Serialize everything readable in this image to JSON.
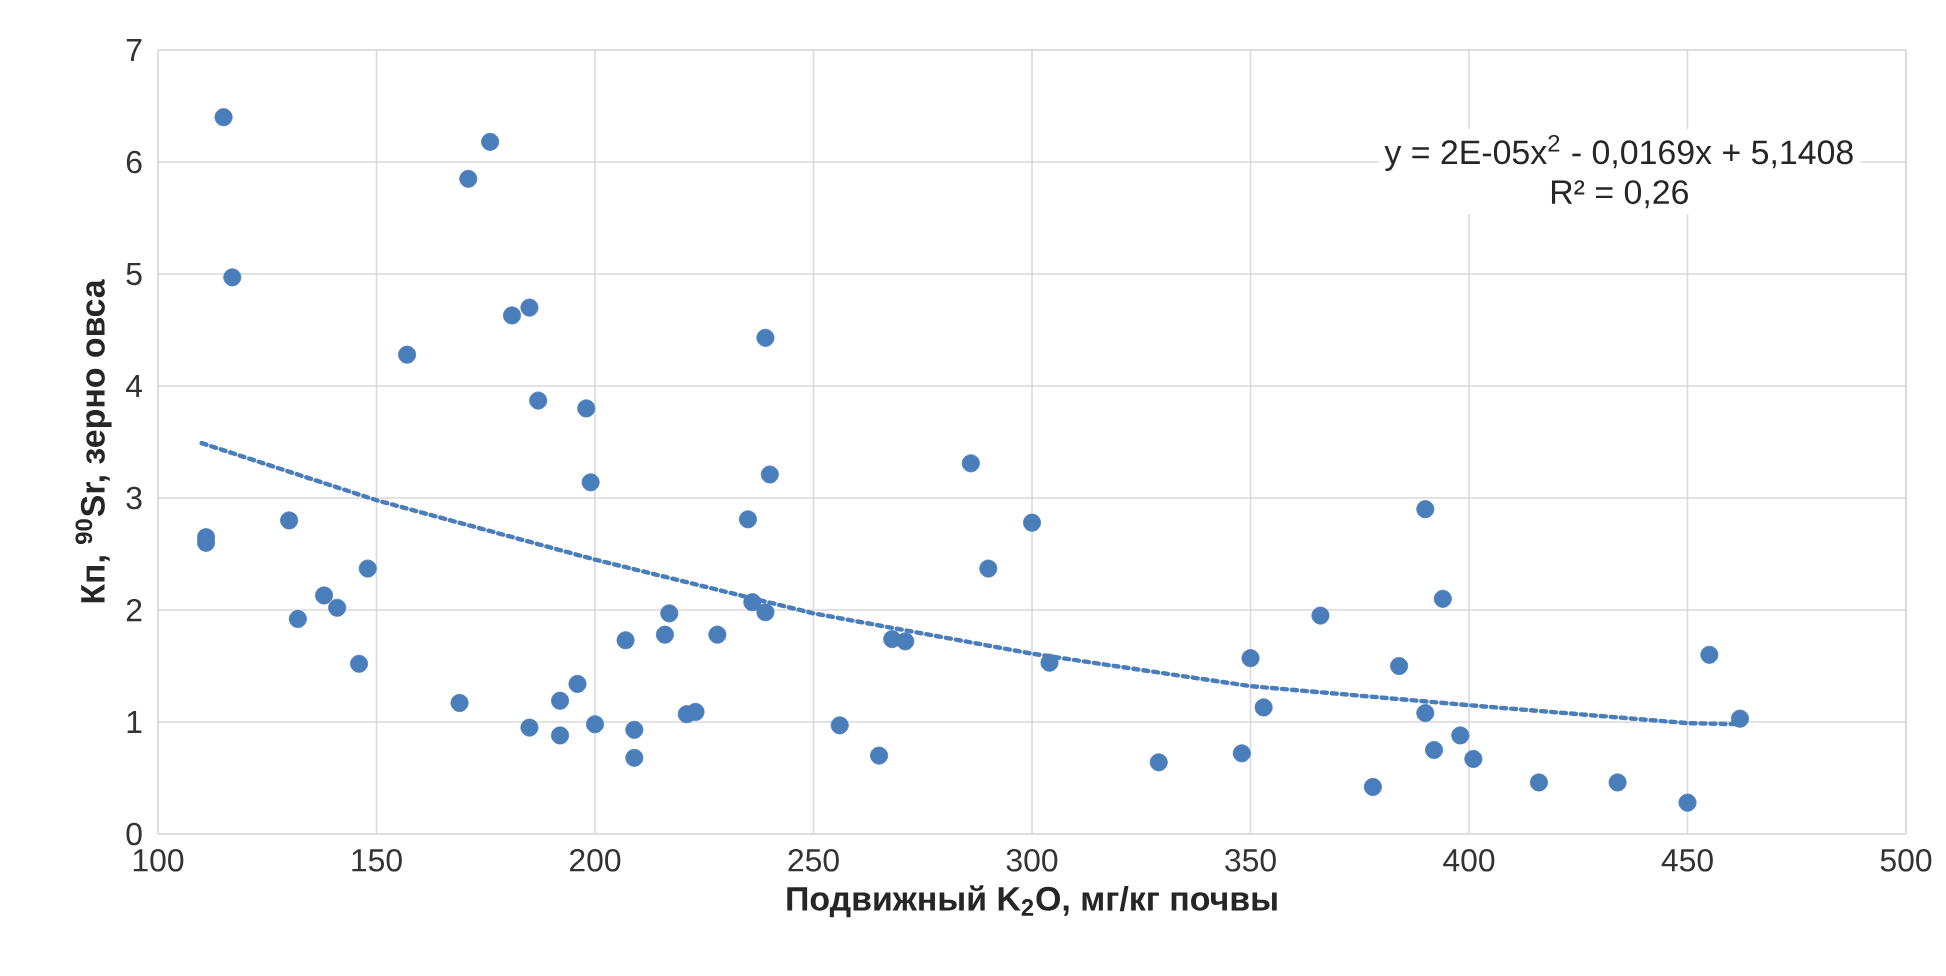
{
  "chart_data": {
    "type": "scatter",
    "xlabel": "Подвижный K$_{2}$O, мг/кг почвы",
    "ylabel": "Кп, $^{90}$Sr, зерно овса",
    "annotations": [
      "y = 2E-05x$^{2}$ - 0,0169x + 5,1408",
      "R² = 0,26"
    ],
    "xlim": [
      100,
      500
    ],
    "ylim": [
      0,
      7
    ],
    "xticks": [
      100,
      150,
      200,
      250,
      300,
      350,
      400,
      450,
      500
    ],
    "yticks": [
      0,
      1,
      2,
      3,
      4,
      5,
      6,
      7
    ],
    "grid": true,
    "marker": "circle",
    "series": [
      {
        "color": "#4a7ebb",
        "x": [
          111,
          111,
          115,
          117,
          130,
          132,
          138,
          141,
          146,
          148,
          157,
          169,
          171,
          176,
          181,
          185,
          187,
          198,
          199,
          185,
          192,
          192,
          196,
          200,
          207,
          209,
          209,
          216,
          217,
          221,
          223,
          228,
          235,
          236,
          239,
          239,
          240,
          256,
          265,
          268,
          271,
          286,
          290,
          300,
          304,
          329,
          348,
          350,
          353,
          366,
          378,
          384,
          390,
          390,
          392,
          394,
          398,
          401,
          416,
          434,
          450,
          455,
          462
        ],
        "values": [
          2.65,
          2.6,
          6.4,
          4.97,
          2.8,
          1.92,
          2.13,
          2.02,
          1.52,
          2.37,
          4.28,
          1.17,
          5.85,
          6.18,
          4.63,
          4.7,
          3.87,
          3.8,
          3.14,
          0.95,
          0.88,
          1.19,
          1.34,
          0.98,
          1.73,
          0.93,
          0.68,
          1.78,
          1.97,
          1.07,
          1.09,
          1.78,
          2.81,
          2.07,
          1.98,
          4.43,
          3.21,
          0.97,
          0.7,
          1.74,
          1.72,
          3.31,
          2.37,
          2.78,
          1.53,
          0.64,
          0.72,
          1.57,
          1.13,
          1.95,
          0.42,
          1.5,
          2.9,
          1.08,
          0.75,
          2.1,
          0.88,
          0.67,
          0.46,
          0.46,
          0.28,
          1.6,
          1.03
        ]
      },
      {
        "type": "line",
        "color": "#4a7ebb",
        "marker": "none",
        "line_style": "dotted",
        "x": [
          110,
          150,
          200,
          250,
          300,
          350,
          400,
          450,
          462
        ],
        "values": [
          3.49,
          2.98,
          2.45,
          1.97,
          1.61,
          1.32,
          1.15,
          0.99,
          0.98
        ]
      }
    ]
  }
}
